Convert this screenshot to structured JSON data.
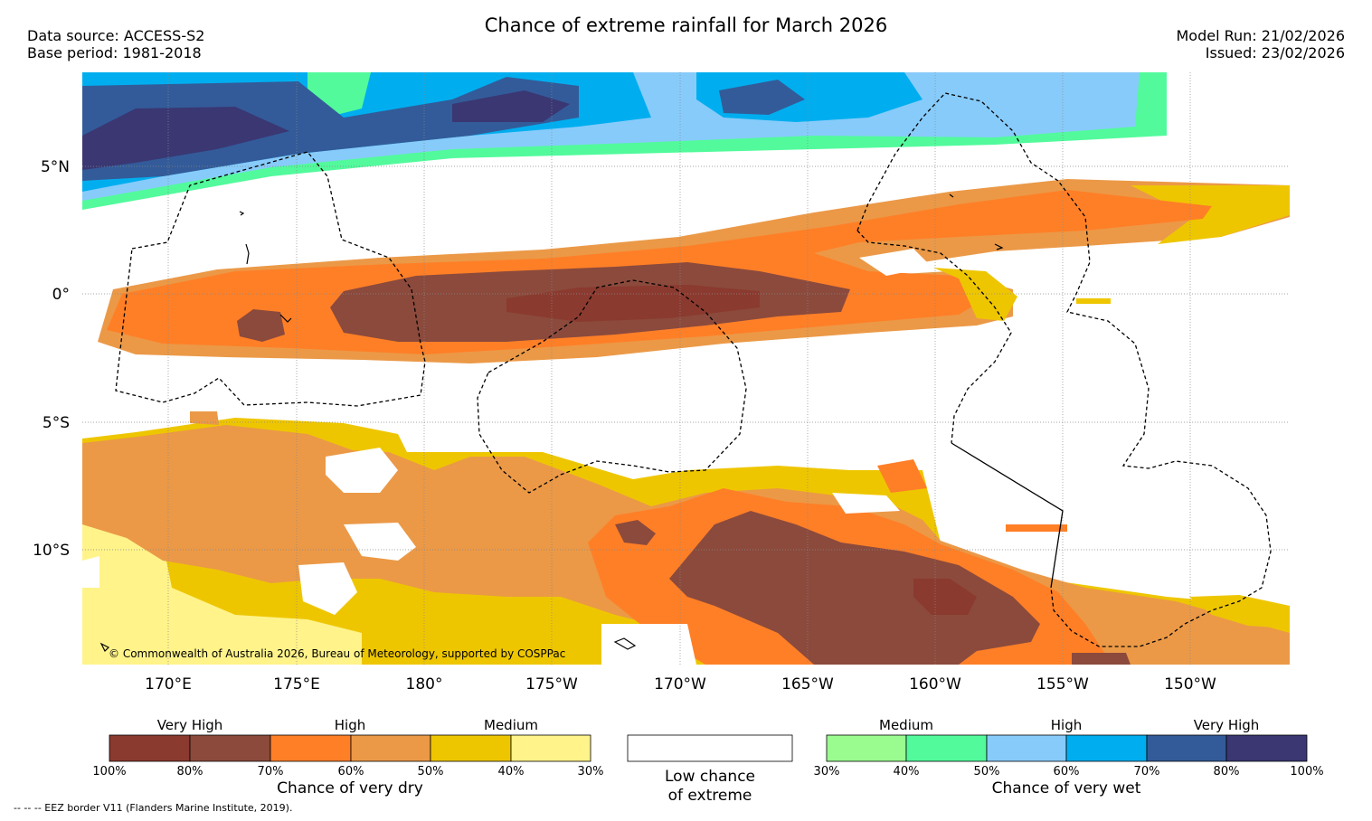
{
  "title": "Chance of extreme rainfall for March 2026",
  "data_source": "Data source: ACCESS-S2",
  "base_period": "Base period: 1981-2018",
  "model_run": "Model Run: 21/02/2026",
  "issued": "Issued: 23/02/2026",
  "lat_labels": [
    "5°N",
    "0°",
    "5°S",
    "10°S"
  ],
  "lon_labels": [
    "170°E",
    "175°E",
    "180°",
    "175°W",
    "170°W",
    "165°W",
    "160°W",
    "155°W",
    "150°W"
  ],
  "copyright": "© Commonwealth of Australia 2026, Bureau of Meteorology, supported by COSPPac",
  "legend_dry": {
    "heads": [
      "Very High",
      "High",
      "Medium"
    ],
    "colors": [
      "#8b3a2f",
      "#8b4a3c",
      "#ff7f27",
      "#eb9947",
      "#eec600",
      "#fff38a"
    ],
    "ticks": [
      "100%",
      "80%",
      "70%",
      "60%",
      "50%",
      "40%",
      "30%"
    ],
    "title": "Chance of very dry"
  },
  "legend_low": {
    "line1": "Low chance",
    "line2": "of extreme"
  },
  "legend_wet": {
    "heads": [
      "Medium",
      "High",
      "Very High"
    ],
    "colors": [
      "#9afc8f",
      "#52fa9c",
      "#87cbfa",
      "#00aeef",
      "#335b99",
      "#3a3773"
    ],
    "ticks": [
      "30%",
      "40%",
      "50%",
      "60%",
      "70%",
      "80%",
      "100%"
    ],
    "title": "Chance of very wet"
  },
  "footnote": "--  --  -- EEZ border V11 (Flanders Marine Institute, 2019).",
  "palette": {
    "vh_dry": "#8b3a2f",
    "vh_dry2": "#8b4a3c",
    "hi_dry": "#ff7f27",
    "hi_dry2": "#eb9947",
    "md_dry": "#eec600",
    "md_dry2": "#fff38a",
    "md_wet": "#9afc8f",
    "md_wet2": "#52fa9c",
    "hi_wet": "#87cbfa",
    "hi_wet2": "#00aeef",
    "vh_wet": "#335b99",
    "vh_wet2": "#3a3773"
  }
}
